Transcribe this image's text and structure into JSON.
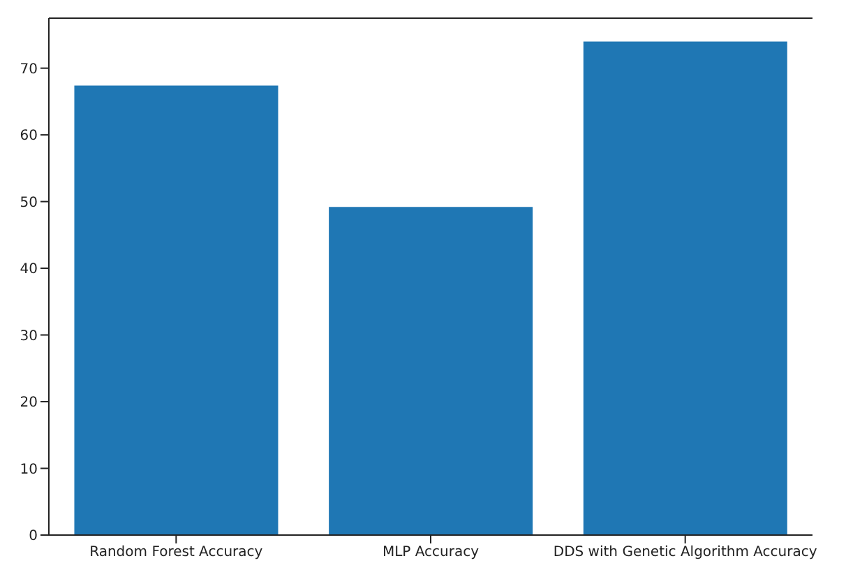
{
  "chart_data": {
    "type": "bar",
    "categories": [
      "Random Forest Accuracy",
      "MLP Accuracy",
      "DDS with Genetic Algorithm Accuracy"
    ],
    "values": [
      67.4,
      49.2,
      74.0
    ],
    "color": "#1f77b4",
    "ylim": [
      0,
      77.5
    ],
    "yticks": [
      0,
      10,
      20,
      30,
      40,
      50,
      60,
      70
    ],
    "grid": false
  }
}
